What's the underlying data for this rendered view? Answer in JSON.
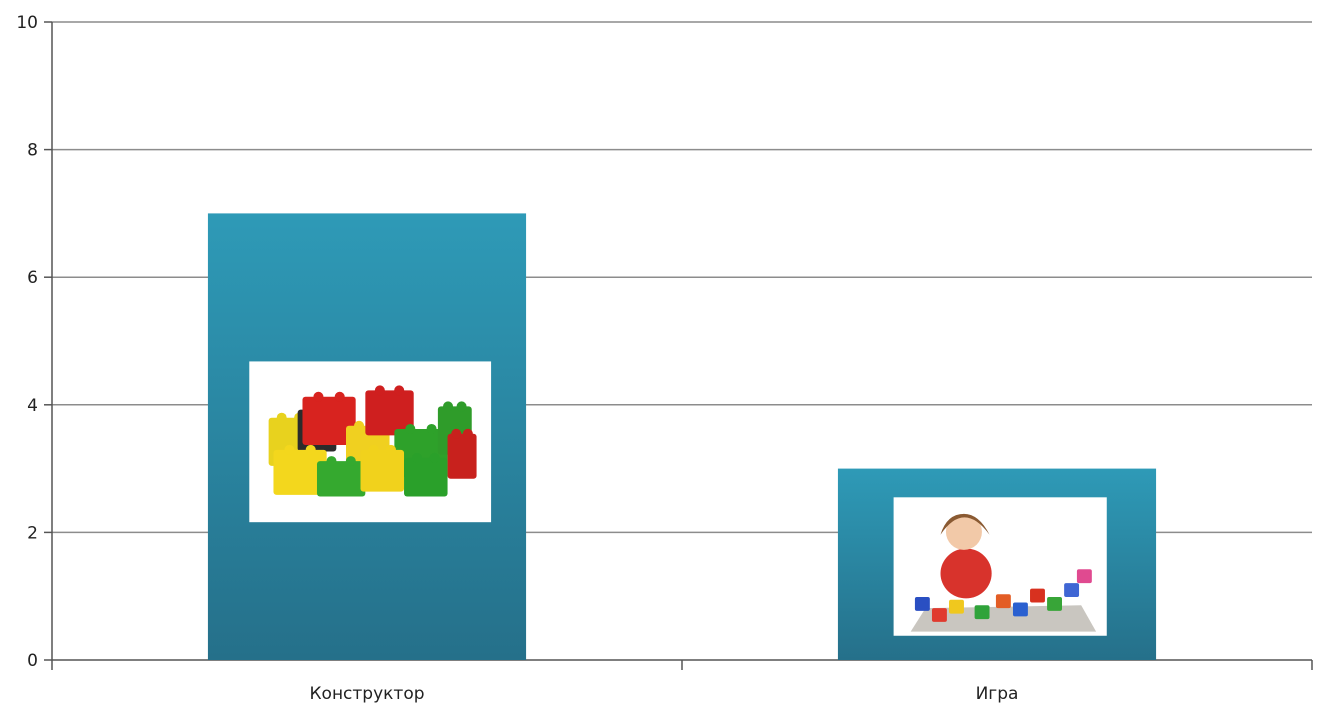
{
  "chart_data": {
    "type": "bar",
    "categories": [
      "Конструктор",
      "Игра"
    ],
    "values": [
      7,
      3
    ],
    "title": "",
    "xlabel": "",
    "ylabel": "",
    "ylim": [
      0,
      10
    ],
    "yticks": [
      0,
      2,
      4,
      6,
      8,
      10
    ],
    "grid": true,
    "legend": "none",
    "bar_images": [
      "toy-bricks-photo",
      "child-playing-photo"
    ]
  },
  "colors": {
    "bar_top": "#2e9ab7",
    "bar_bottom": "#25708a",
    "grid": "#8c8c8c",
    "axis": "#555555"
  }
}
